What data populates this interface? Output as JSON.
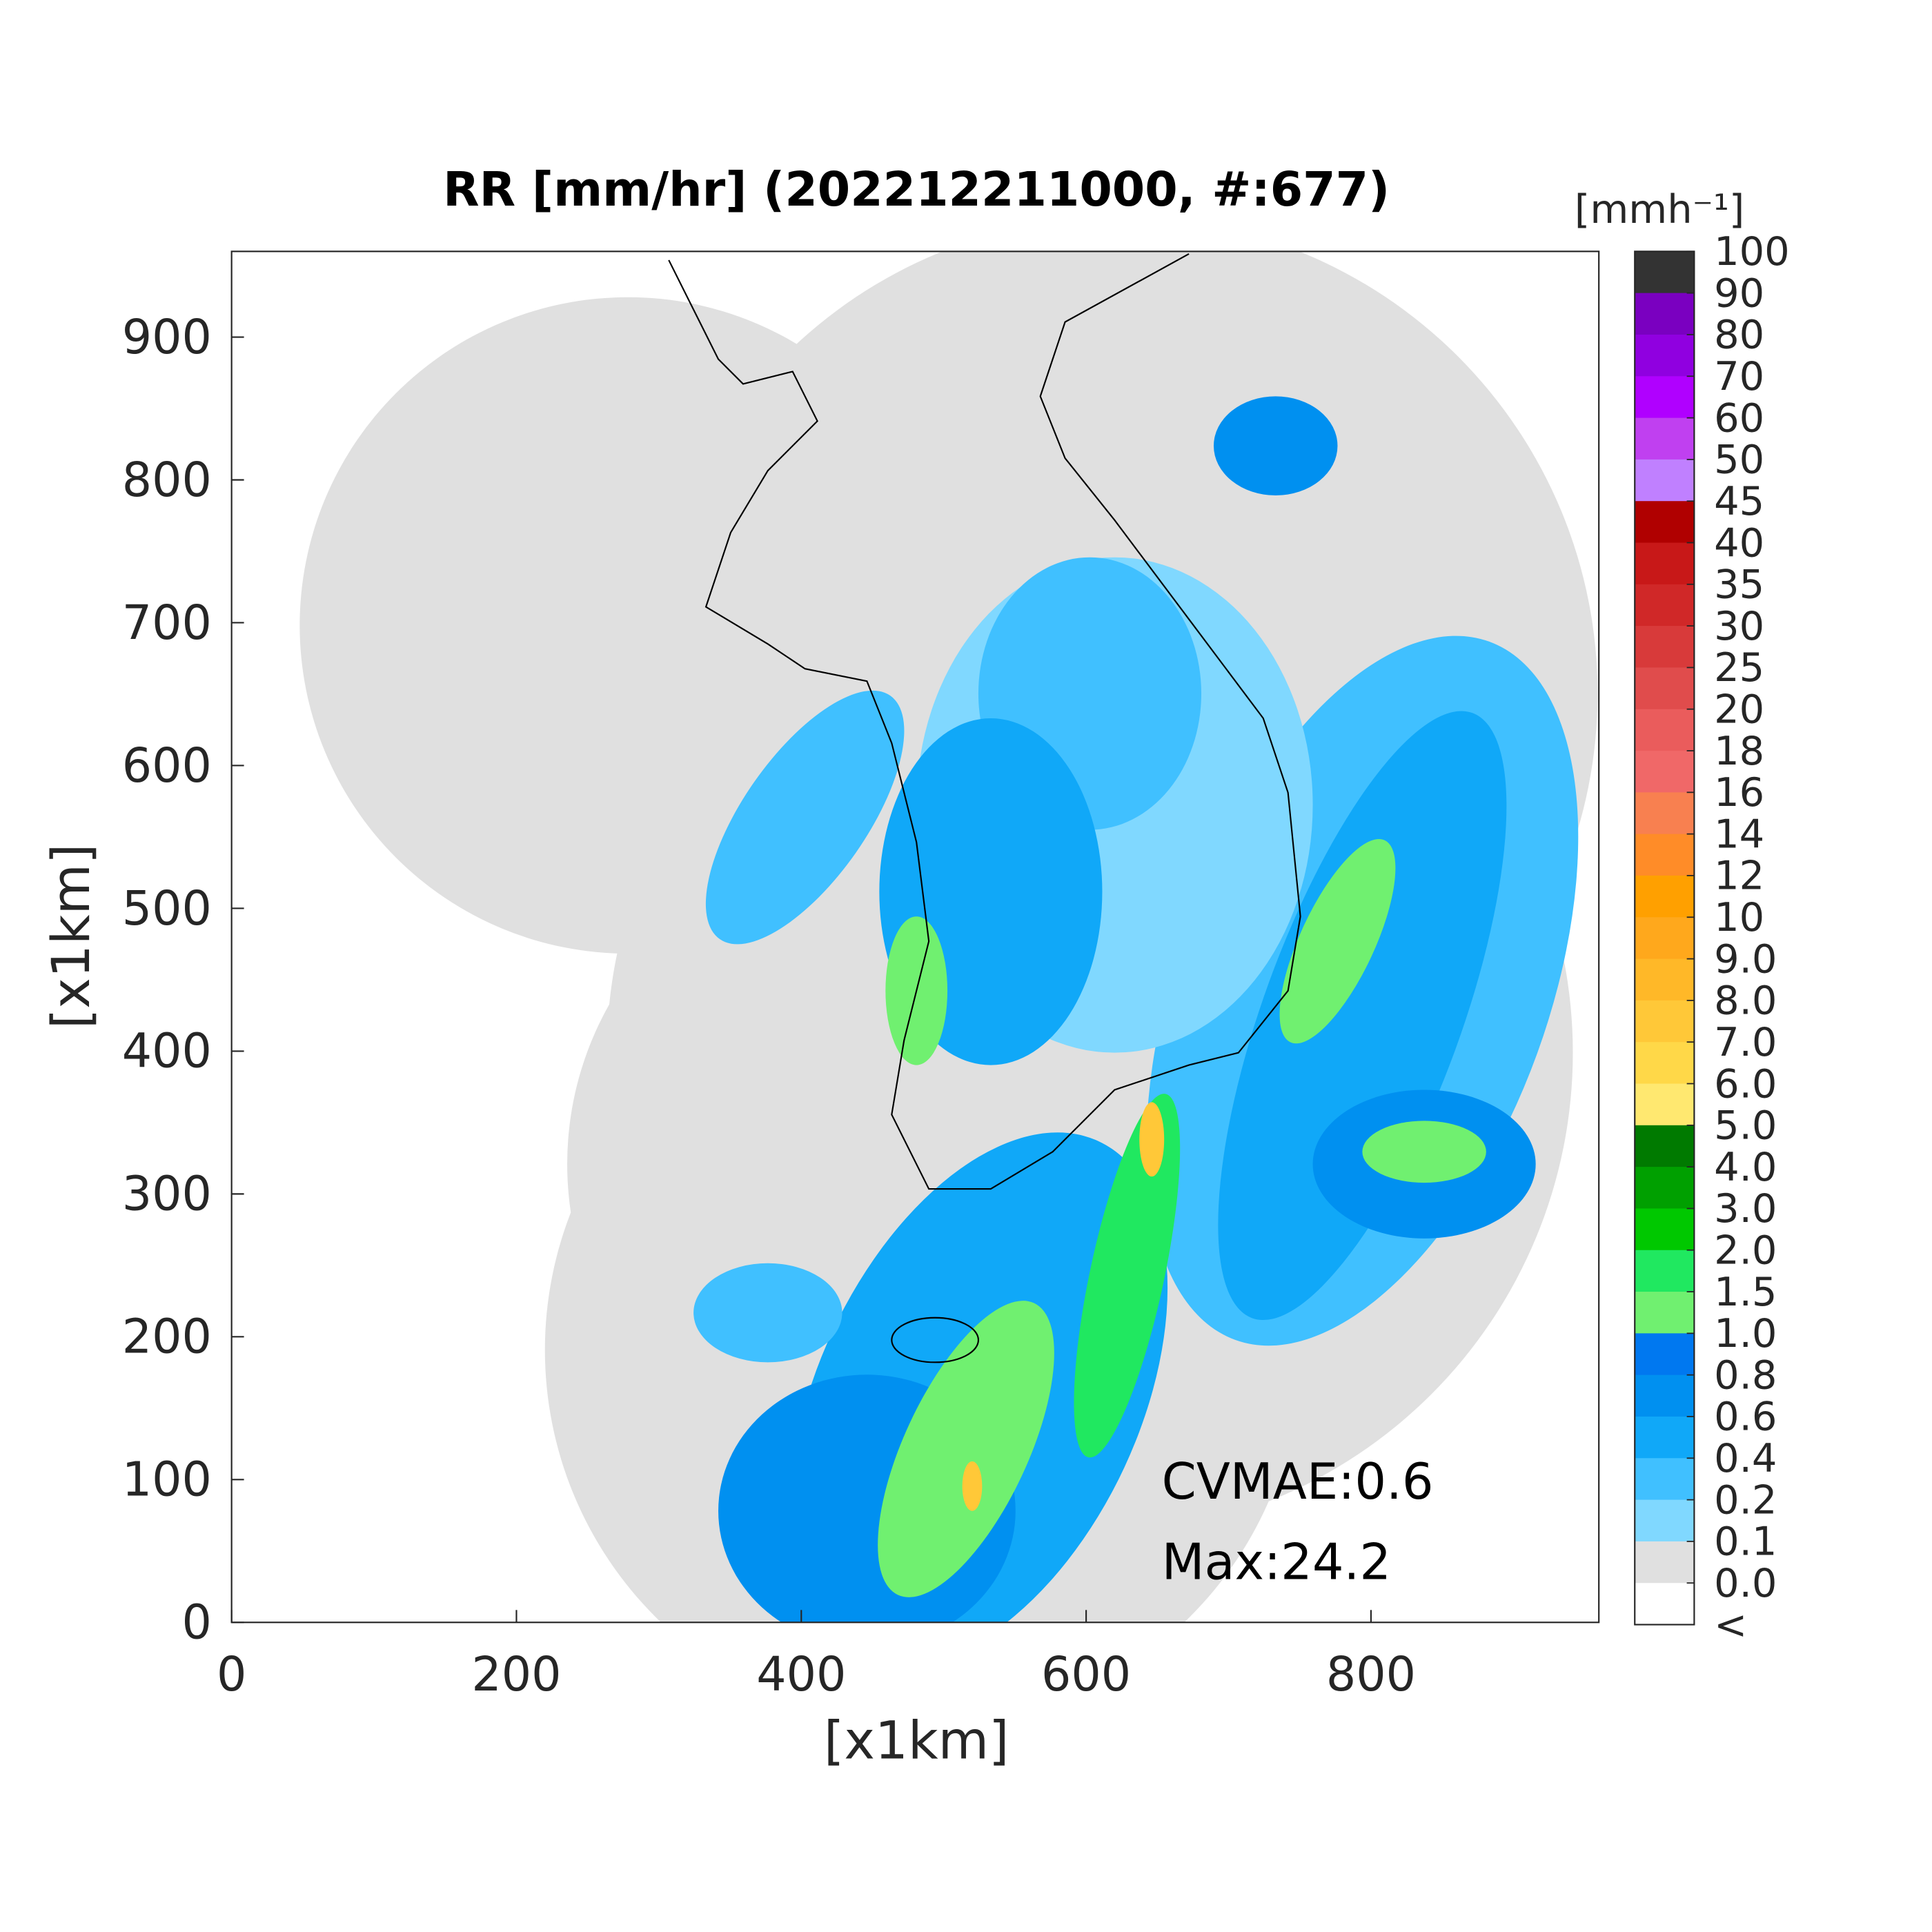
{
  "chart_data": {
    "type": "heatmap",
    "title": "RR [mm/hr] (202212211000, #:677)",
    "xlabel": "[x1km]",
    "ylabel": "[x1km]",
    "xlim": [
      0,
      960
    ],
    "ylim": [
      0,
      960
    ],
    "xticks": [
      0,
      200,
      400,
      600,
      800
    ],
    "yticks": [
      0,
      100,
      200,
      300,
      400,
      500,
      600,
      700,
      800,
      900
    ],
    "annotations": [
      "CVMAE:0.6",
      "Max:24.2"
    ],
    "colorbar": {
      "label": "[mmh⁻¹]",
      "ticks": [
        100,
        90,
        80,
        70,
        60,
        50,
        45,
        40,
        35,
        30,
        25,
        20,
        18,
        16,
        14,
        12,
        10,
        {
          "value": 9,
          "label": "9.0"
        },
        {
          "value": 8,
          "label": "8.0"
        },
        {
          "value": 7,
          "label": "7.0"
        },
        {
          "value": 6,
          "label": "6.0"
        },
        {
          "value": 5,
          "label": "5.0"
        },
        {
          "value": 4,
          "label": "4.0"
        },
        {
          "value": 3,
          "label": "3.0"
        },
        {
          "value": 2,
          "label": "2.0"
        },
        1.5,
        {
          "value": 1,
          "label": "1.0"
        },
        0.8,
        0.6,
        0.4,
        0.2,
        0.1,
        {
          "value": 0,
          "label": "0.0"
        }
      ],
      "under_label": "<",
      "colors": [
        "#333333",
        "#7a00c0",
        "#9000e0",
        "#b000ff",
        "#c040f0",
        "#c080ff",
        "#b00000",
        "#c81818",
        "#d02828",
        "#d83a3a",
        "#e04c4c",
        "#ea5c5c",
        "#f06868",
        "#f88050",
        "#ff8c28",
        "#ffa000",
        "#ffa81c",
        "#ffb828",
        "#ffc838",
        "#ffd848",
        "#ffe870",
        "#007a00",
        "#00a000",
        "#00c800",
        "#20e860",
        "#70f070",
        "#0078f0",
        "#0090f0",
        "#10a8f8",
        "#40c0ff",
        "#80d8ff",
        "#e0e0e0"
      ],
      "under_color": "#ffffff"
    }
  }
}
